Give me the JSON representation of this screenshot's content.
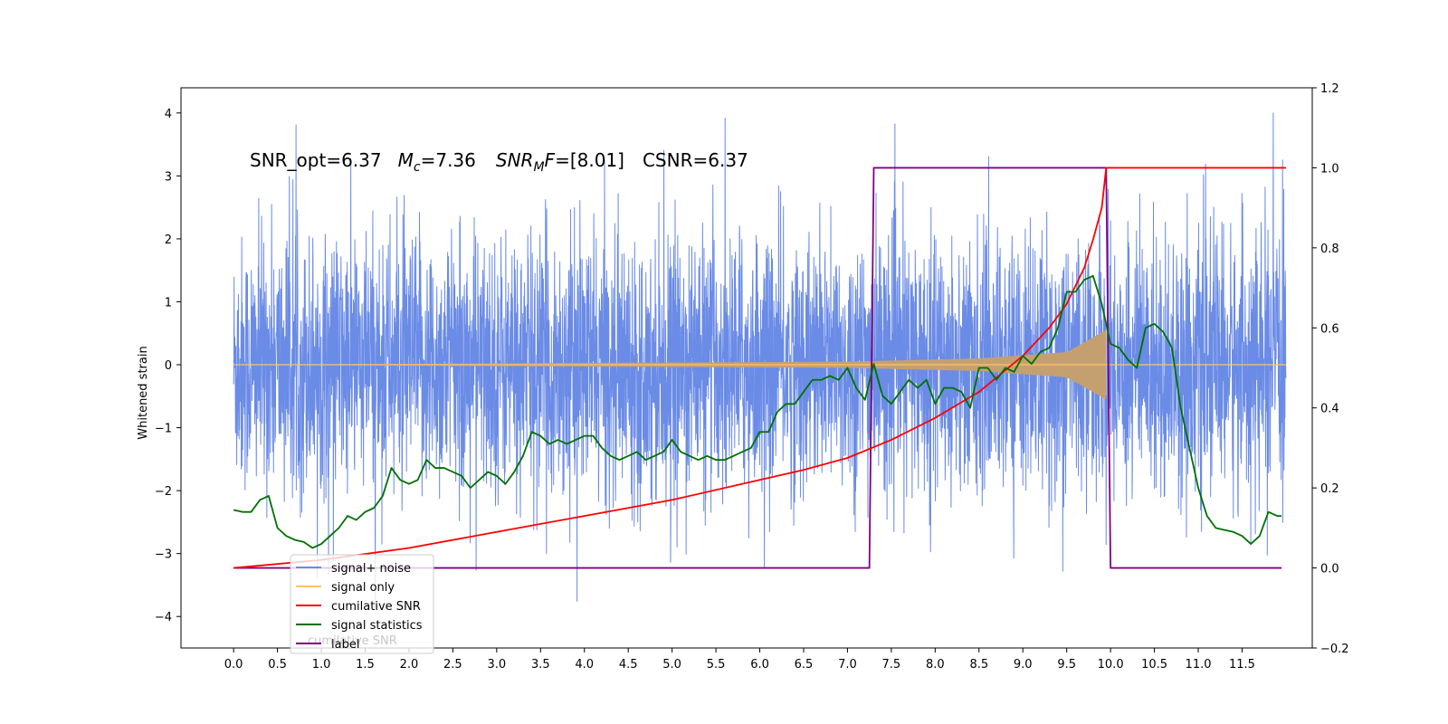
{
  "chart_data": {
    "type": "line",
    "title": "",
    "xlabel": "",
    "ylabel": "Whitened strain",
    "xlim": [
      -0.6,
      12.3
    ],
    "ylim": [
      -4.5,
      4.4
    ],
    "y2lim": [
      -0.2,
      1.2
    ],
    "x_ticks": [
      0.0,
      0.5,
      1.0,
      1.5,
      2.0,
      2.5,
      3.0,
      3.5,
      4.0,
      4.5,
      5.0,
      5.5,
      6.0,
      6.5,
      7.0,
      7.5,
      8.0,
      8.5,
      9.0,
      9.5,
      10.0,
      10.5,
      11.0,
      11.5
    ],
    "x_tick_labels": [
      "0.0",
      "0.5",
      "1.0",
      "1.5",
      "2.0",
      "2.5",
      "3.0",
      "3.5",
      "4.0",
      "4.5",
      "5.0",
      "5.5",
      "6.0",
      "6.5",
      "7.0",
      "7.5",
      "8.0",
      "8.5",
      "9.0",
      "9.5",
      "10.0",
      "10.5",
      "11.0",
      "11.5"
    ],
    "y_ticks": [
      4,
      3,
      2,
      1,
      0,
      -1,
      -2,
      -3,
      -4
    ],
    "y_tick_labels": [
      "4",
      "3",
      "2",
      "1",
      "0",
      "−1",
      "−2",
      "−3",
      "−4"
    ],
    "y2_ticks": [
      1.2,
      1.0,
      0.8,
      0.6,
      0.4,
      0.2,
      0.0,
      -0.2
    ],
    "y2_tick_labels": [
      "1.2",
      "1.0",
      "0.8",
      "0.6",
      "0.4",
      "0.2",
      "0.0",
      "−0.2"
    ],
    "annotation": {
      "snr_opt": "SNR_opt=6.37",
      "mc_symbol": "M",
      "mc_sub": "c",
      "mc_value": "=7.36",
      "snrmf_symbol": "SNR",
      "snrmf_sub": "M",
      "snrmf_F": "F",
      "snrmf_value": "=[8.01]",
      "csnr": "CSNR=6.37"
    },
    "legend_placement": "lower-left",
    "legend": [
      {
        "name": "signal+ noise",
        "color": "#6a8be6"
      },
      {
        "name": "signal only",
        "color": "#ffc266"
      },
      {
        "name": "cumilative SNR",
        "color": "#ff0000"
      },
      {
        "name": "signal statistics",
        "color": "#007000"
      },
      {
        "name": "label",
        "color": "#800080"
      }
    ],
    "legend_overlap_text": "cumilative SNR",
    "series": [
      {
        "name": "signal+ noise",
        "axis": "left",
        "color": "#6a8be6",
        "note": "dense whitened noise, x from 0.0 to 12.0, amplitude mostly within ±2.5 with spikes to about ±4"
      },
      {
        "name": "signal only",
        "axis": "left",
        "color": "#ffc266",
        "x_start": 0.0,
        "x_end": 12.0,
        "chirp_end": 9.95,
        "envelope_x": [
          0.0,
          7.0,
          8.5,
          9.5,
          9.95
        ],
        "envelope_y": [
          0.0,
          0.05,
          0.1,
          0.2,
          0.55
        ]
      },
      {
        "name": "cumilative SNR",
        "axis": "right",
        "color": "#ff0000",
        "x": [
          0.0,
          1.0,
          2.0,
          3.0,
          4.0,
          5.0,
          6.0,
          6.5,
          7.0,
          7.5,
          8.0,
          8.5,
          9.0,
          9.3,
          9.5,
          9.7,
          9.8,
          9.9,
          9.95,
          10.0,
          12.0
        ],
        "y": [
          0.0,
          0.02,
          0.05,
          0.09,
          0.13,
          0.17,
          0.22,
          0.245,
          0.275,
          0.32,
          0.375,
          0.44,
          0.53,
          0.6,
          0.66,
          0.75,
          0.82,
          0.9,
          1.0,
          1.0,
          1.0
        ]
      },
      {
        "name": "signal statistics",
        "axis": "right",
        "color": "#007000",
        "x": [
          0.0,
          0.1,
          0.2,
          0.3,
          0.4,
          0.5,
          0.6,
          0.7,
          0.8,
          0.9,
          1.0,
          1.1,
          1.2,
          1.3,
          1.4,
          1.5,
          1.6,
          1.7,
          1.8,
          1.9,
          2.0,
          2.1,
          2.2,
          2.3,
          2.4,
          2.5,
          2.6,
          2.7,
          2.8,
          2.9,
          3.0,
          3.1,
          3.2,
          3.3,
          3.4,
          3.5,
          3.6,
          3.7,
          3.8,
          3.9,
          4.0,
          4.1,
          4.2,
          4.3,
          4.4,
          4.5,
          4.6,
          4.7,
          4.8,
          4.9,
          5.0,
          5.1,
          5.2,
          5.3,
          5.4,
          5.5,
          5.6,
          5.7,
          5.8,
          5.9,
          6.0,
          6.1,
          6.2,
          6.3,
          6.4,
          6.5,
          6.6,
          6.7,
          6.8,
          6.9,
          7.0,
          7.1,
          7.2,
          7.3,
          7.4,
          7.5,
          7.6,
          7.7,
          7.8,
          7.9,
          8.0,
          8.1,
          8.2,
          8.3,
          8.4,
          8.5,
          8.6,
          8.7,
          8.8,
          8.9,
          9.0,
          9.1,
          9.2,
          9.3,
          9.4,
          9.5,
          9.6,
          9.7,
          9.8,
          9.9,
          10.0,
          10.1,
          10.2,
          10.3,
          10.4,
          10.5,
          10.6,
          10.7,
          10.8,
          10.9,
          11.0,
          11.1,
          11.2,
          11.3,
          11.4,
          11.5,
          11.6,
          11.7,
          11.8,
          11.9,
          11.95
        ],
        "y": [
          0.145,
          0.14,
          0.14,
          0.17,
          0.18,
          0.1,
          0.08,
          0.07,
          0.065,
          0.05,
          0.06,
          0.08,
          0.1,
          0.13,
          0.12,
          0.14,
          0.15,
          0.18,
          0.25,
          0.22,
          0.21,
          0.22,
          0.27,
          0.25,
          0.25,
          0.24,
          0.23,
          0.2,
          0.22,
          0.24,
          0.23,
          0.21,
          0.24,
          0.28,
          0.34,
          0.33,
          0.31,
          0.32,
          0.31,
          0.32,
          0.33,
          0.33,
          0.3,
          0.28,
          0.27,
          0.28,
          0.29,
          0.27,
          0.28,
          0.29,
          0.32,
          0.29,
          0.28,
          0.27,
          0.28,
          0.27,
          0.27,
          0.28,
          0.29,
          0.3,
          0.34,
          0.34,
          0.39,
          0.41,
          0.41,
          0.44,
          0.47,
          0.47,
          0.48,
          0.47,
          0.5,
          0.45,
          0.42,
          0.51,
          0.43,
          0.41,
          0.44,
          0.47,
          0.45,
          0.47,
          0.41,
          0.45,
          0.45,
          0.44,
          0.4,
          0.5,
          0.5,
          0.47,
          0.5,
          0.49,
          0.53,
          0.51,
          0.54,
          0.55,
          0.6,
          0.69,
          0.69,
          0.72,
          0.73,
          0.66,
          0.56,
          0.55,
          0.52,
          0.5,
          0.6,
          0.61,
          0.59,
          0.55,
          0.4,
          0.3,
          0.2,
          0.13,
          0.1,
          0.095,
          0.09,
          0.08,
          0.06,
          0.08,
          0.14,
          0.13,
          0.13
        ]
      },
      {
        "name": "label",
        "axis": "right",
        "color": "#800080",
        "x": [
          0.0,
          7.25,
          7.3,
          9.95,
          10.0,
          11.95
        ],
        "y": [
          0.0,
          0.0,
          1.0,
          1.0,
          0.0,
          0.0
        ]
      }
    ]
  }
}
